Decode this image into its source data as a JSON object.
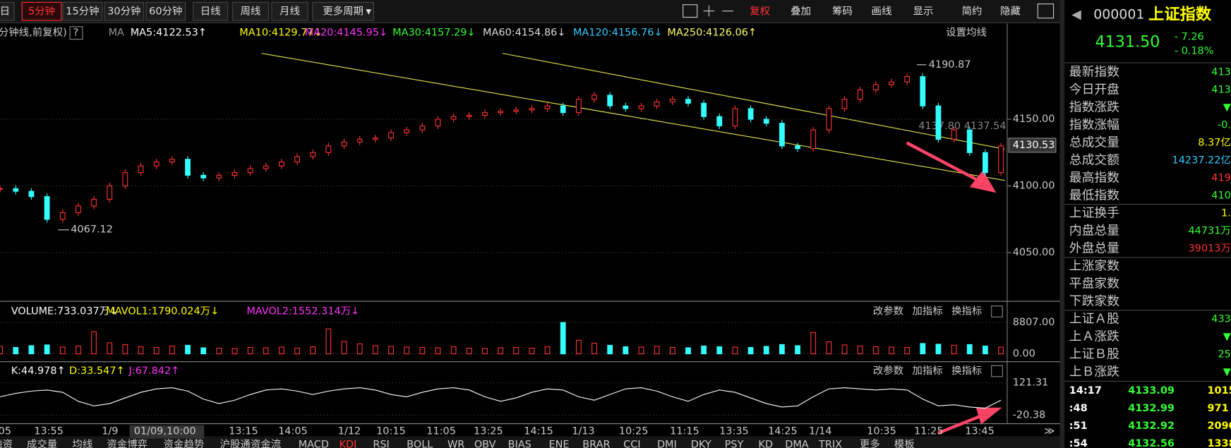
{
  "toolbar": {
    "tabs": [
      "日",
      "5分钟",
      "15分钟",
      "30分钟",
      "60分钟",
      "日线",
      "周线",
      "月线",
      "更多周期"
    ],
    "active_tab": 1,
    "buttons": [
      "复权",
      "叠加",
      "筹码",
      "画线",
      "显示",
      "简约",
      "隐藏"
    ]
  },
  "price_panel": {
    "caption": "分钟线,前复权)",
    "ma_label": "MA",
    "ma_items": [
      {
        "text": "MA5:4122.53↑",
        "color": "#ffffff"
      },
      {
        "text": "MA10:4129.77↓",
        "color": "#ffff00"
      },
      {
        "text": "MA20:4145.95↓",
        "color": "#ff33ff"
      },
      {
        "text": "MA30:4157.29↓",
        "color": "#33ff33"
      },
      {
        "text": "MA60:4154.86↓",
        "color": "#dddddd"
      },
      {
        "text": "MA120:4156.76↓",
        "color": "#33ccff"
      },
      {
        "text": "MA250:4126.06↑",
        "color": "#ffff66"
      }
    ],
    "settings_button": "设置均线",
    "yticks": [
      {
        "value": 4150,
        "label": "4150.00"
      },
      {
        "value": 4100,
        "label": "4100.00"
      },
      {
        "value": 4050,
        "label": "4050.00"
      }
    ],
    "current_label": {
      "value": 4130.53,
      "label": "4130.53"
    },
    "high_label": {
      "value": 4190.87,
      "label": "4190.87"
    },
    "low_label": {
      "value": 4067.12,
      "label": "4067.12"
    },
    "cursor_labels": [
      "4137.80",
      "4137.54"
    ],
    "closes": [
      4098,
      4096,
      4092,
      4075,
      4080,
      4085,
      4090,
      4100,
      4110,
      4115,
      4118,
      4120,
      4108,
      4106,
      4108,
      4110,
      4113,
      4115,
      4118,
      4122,
      4125,
      4130,
      4133,
      4135,
      4136,
      4140,
      4142,
      4145,
      4150,
      4152,
      4153,
      4155,
      4156,
      4157,
      4158,
      4160,
      4155,
      4165,
      4168,
      4160,
      4158,
      4160,
      4163,
      4165,
      4162,
      4152,
      4145,
      4158,
      4150,
      4147,
      4130,
      4128,
      4142,
      4158,
      4165,
      4172,
      4176,
      4178,
      4182,
      4160,
      4135,
      4142,
      4125,
      4110,
      4130
    ]
  },
  "volume_panel": {
    "items": [
      {
        "text": "VOLUME:733.037万↓",
        "color": "#ffffff"
      },
      {
        "text": "MAVOL1:1790.024万↓",
        "color": "#ffff00"
      },
      {
        "text": "MAVOL2:1552.314万↓",
        "color": "#ff33ff"
      }
    ],
    "yticks": [
      {
        "value": 8807,
        "label": "8807.00"
      },
      {
        "value": 0,
        "label": "0.00"
      }
    ],
    "values": [
      2100,
      1800,
      2300,
      2500,
      1900,
      2200,
      6200,
      3100,
      2600,
      2000,
      1800,
      2200,
      2400,
      1700,
      1600,
      1500,
      1800,
      1700,
      1900,
      1600,
      2000,
      7000,
      3500,
      2800,
      2300,
      2100,
      1900,
      1800,
      1700,
      2000,
      1600,
      1500,
      1700,
      1800,
      1600,
      2000,
      8807,
      3800,
      3000,
      2400,
      2000,
      1900,
      2100,
      1800,
      1700,
      2200,
      2000,
      1900,
      1800,
      2100,
      2600,
      2300,
      6000,
      3400,
      2500,
      2200,
      2000,
      1900,
      1800,
      2900,
      2700,
      2400,
      2600,
      2200,
      1900
    ]
  },
  "kdj_panel": {
    "items": [
      {
        "text": "K:44.978↑",
        "color": "#ffffff"
      },
      {
        "text": "D:33.547↑",
        "color": "#ffff00"
      },
      {
        "text": "J:67.842↑",
        "color": "#ff33ff"
      }
    ],
    "yticks": [
      {
        "value": 121.31,
        "label": "121.31"
      },
      {
        "value": -20.38,
        "label": "-20.38"
      }
    ],
    "k_values": [
      60,
      75,
      85,
      90,
      80,
      40,
      20,
      30,
      55,
      80,
      95,
      100,
      85,
      50,
      30,
      45,
      70,
      90,
      95,
      85,
      70,
      85,
      95,
      100,
      90,
      70,
      60,
      80,
      95,
      100,
      90,
      60,
      40,
      55,
      80,
      95,
      90,
      60,
      45,
      70,
      95,
      100,
      85,
      60,
      40,
      70,
      90,
      80,
      55,
      30,
      15,
      20,
      60,
      95,
      100,
      95,
      90,
      95,
      90,
      50,
      20,
      25,
      15,
      10,
      44.978
    ]
  },
  "panel_buttons": [
    "改参数",
    "加指标",
    "换指标"
  ],
  "x_labels": [
    "05",
    "13:55",
    "1/9",
    "01/09,10:00",
    "13:15",
    "14:05",
    "1/12",
    "10:15",
    "11:05",
    "13:25",
    "14:15",
    "1/13",
    "10:25",
    "11:15",
    "13:35",
    "14:25",
    "1/14",
    "10:35",
    "11:25",
    "13:45"
  ],
  "bottom_tabs": [
    "融资",
    "成交量",
    "均线",
    "资金博弈",
    "资金趋势",
    "沪股通资金流",
    "MACD",
    "KDJ",
    "RSI",
    "BOLL",
    "WR",
    "OBV",
    "BIAS",
    "ENE",
    "BRAR",
    "CCI",
    "DMI",
    "DKY",
    "PSY",
    "KD",
    "DMA",
    "TRIX",
    "更多",
    "模板"
  ],
  "quote": {
    "code": "000001",
    "name": "上证指数",
    "price": "4131.50",
    "change": "- 7.26",
    "change_pct": "- 0.18%",
    "rows": [
      {
        "label": "最新指数",
        "value": "413",
        "color": "#33ff33"
      },
      {
        "label": "今日开盘",
        "value": "413",
        "color": "#33ff33"
      },
      {
        "label": "指数涨跌",
        "value": "▼",
        "color": "#33ff33"
      },
      {
        "label": "指数涨幅",
        "value": "-0.",
        "color": "#33ff33"
      },
      {
        "label": "总成交量",
        "value": "8.37亿",
        "color": "#ffff00"
      },
      {
        "label": "总成交额",
        "value": "14237.22亿",
        "color": "#33ccff"
      },
      {
        "label": "最高指数",
        "value": "419",
        "color": "#ff3333"
      },
      {
        "label": "最低指数",
        "value": "410",
        "color": "#33ff33"
      },
      {
        "label": "上证换手",
        "value": "1.",
        "color": "#ffff00"
      },
      {
        "label": "内盘总量",
        "value": "44731万",
        "color": "#33ff33"
      },
      {
        "label": "外盘总量",
        "value": "39013万",
        "color": "#ff3333"
      },
      {
        "label": "上涨家数",
        "value": "",
        "color": "#ff3333"
      },
      {
        "label": "平盘家数",
        "value": "",
        "color": "#ffffff"
      },
      {
        "label": "下跌家数",
        "value": "",
        "color": "#33ff33"
      },
      {
        "label": "上证Ａ股",
        "value": "433",
        "color": "#33ff33"
      },
      {
        "label": "上Ａ涨跌",
        "value": "▼",
        "color": "#33ff33"
      },
      {
        "label": "上证Ｂ股",
        "value": "25",
        "color": "#33ff33"
      },
      {
        "label": "上Ｂ涨跌",
        "value": "▼",
        "color": "#33ff33"
      }
    ],
    "ticks": [
      [
        "14:17",
        "4133.09",
        "1015"
      ],
      [
        ":48",
        "4132.99",
        "971"
      ],
      [
        ":51",
        "4132.92",
        "2090"
      ],
      [
        ":54",
        "4132.56",
        "1338"
      ]
    ]
  }
}
